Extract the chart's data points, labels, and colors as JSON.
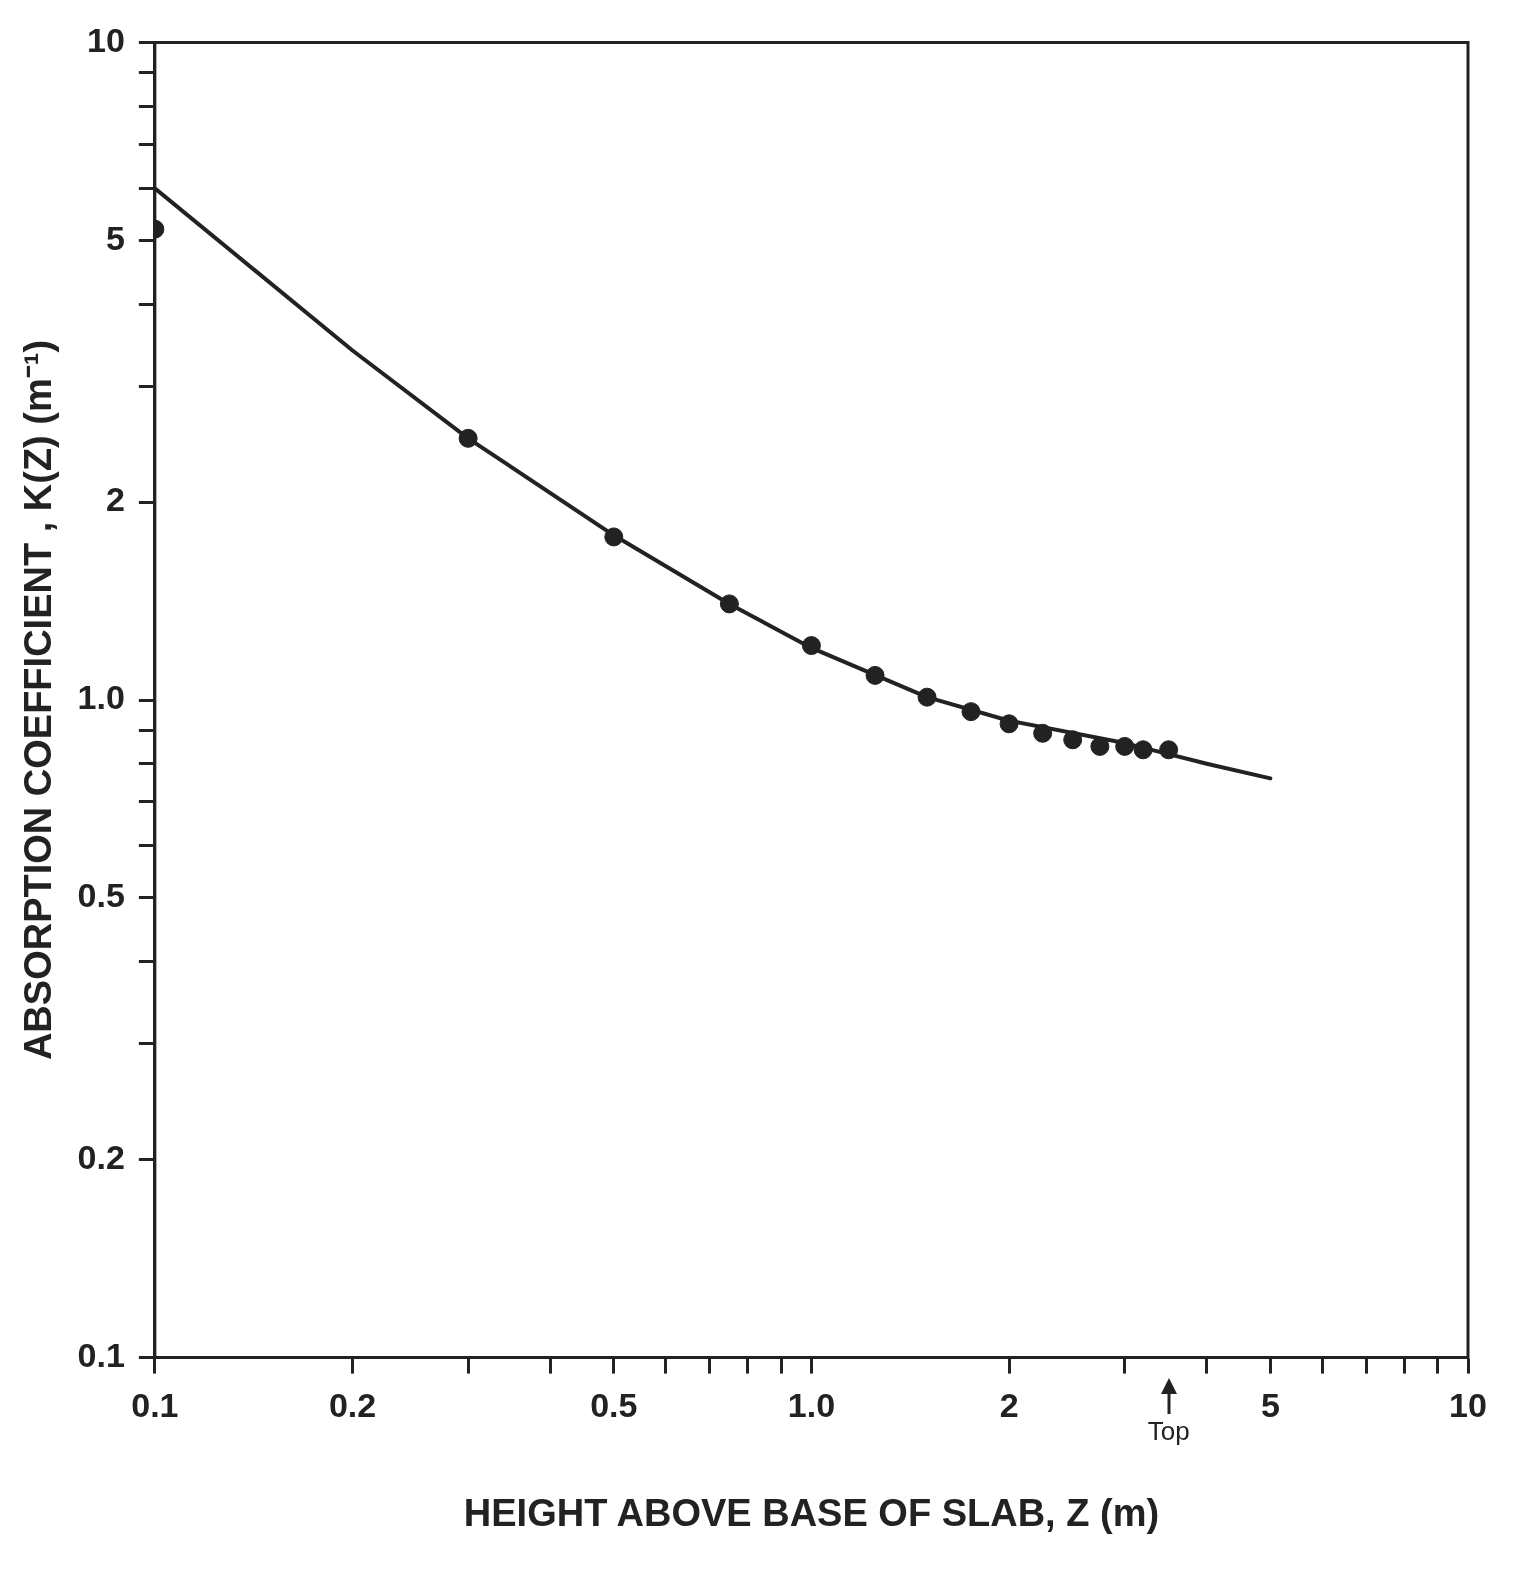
{
  "chart_data": {
    "type": "scatter",
    "xlabel": "HEIGHT ABOVE BASE OF SLAB, Z (m)",
    "ylabel": "ABSORPTION COEFFICIENT , K(Z) (m⁻¹)",
    "log": "xy",
    "grid": false,
    "legend": false,
    "xlim": [
      0.1,
      10
    ],
    "ylim": [
      0.1,
      10
    ],
    "xticks": [
      0.1,
      0.2,
      {
        "value": 0.3,
        "label": null
      },
      {
        "value": 0.4,
        "label": null
      },
      0.5,
      {
        "value": 0.6,
        "label": null
      },
      {
        "value": 0.7,
        "label": null
      },
      {
        "value": 0.8,
        "label": null
      },
      {
        "value": 0.9,
        "label": null
      },
      {
        "value": 1,
        "label": "1.0"
      },
      2,
      {
        "value": 3,
        "label": null
      },
      {
        "value": 4,
        "label": null
      },
      5,
      {
        "value": 6,
        "label": null
      },
      {
        "value": 7,
        "label": null
      },
      {
        "value": 8,
        "label": null
      },
      {
        "value": 9,
        "label": null
      },
      10
    ],
    "yticks": [
      0.1,
      0.2,
      {
        "value": 0.3,
        "label": null
      },
      {
        "value": 0.4,
        "label": null
      },
      0.5,
      {
        "value": 0.6,
        "label": null
      },
      {
        "value": 0.7,
        "label": null
      },
      {
        "value": 0.8,
        "label": null
      },
      {
        "value": 0.9,
        "label": null
      },
      {
        "value": 1,
        "label": "1.0"
      },
      2,
      {
        "value": 3,
        "label": null
      },
      {
        "value": 4,
        "label": null
      },
      5,
      {
        "value": 6,
        "label": null
      },
      {
        "value": 7,
        "label": null
      },
      {
        "value": 8,
        "label": null
      },
      {
        "value": 9,
        "label": null
      },
      10
    ],
    "annotations": [
      "Top"
    ],
    "series": [
      {
        "type": "scatter",
        "color": "#222222",
        "marker": "circle",
        "x": [
          0.1,
          0.3,
          0.5,
          0.75,
          1.0,
          1.25,
          1.5,
          1.75,
          2.0,
          2.25,
          2.5,
          2.75,
          3.0,
          3.2,
          3.5
        ],
        "values": [
          5.2,
          2.5,
          1.77,
          1.4,
          1.21,
          1.09,
          1.01,
          0.96,
          0.92,
          0.89,
          0.87,
          0.85,
          0.85,
          0.84,
          0.84
        ]
      },
      {
        "type": "line",
        "color": "#222222",
        "marker": "none",
        "line_style": "solid",
        "x": [
          0.1,
          0.2,
          0.3,
          0.5,
          0.75,
          1.0,
          1.5,
          2.0,
          3.0,
          4.0,
          5.0
        ],
        "values": [
          6.0,
          3.4,
          2.5,
          1.78,
          1.4,
          1.2,
          1.01,
          0.93,
          0.86,
          0.8,
          0.76
        ]
      }
    ]
  }
}
